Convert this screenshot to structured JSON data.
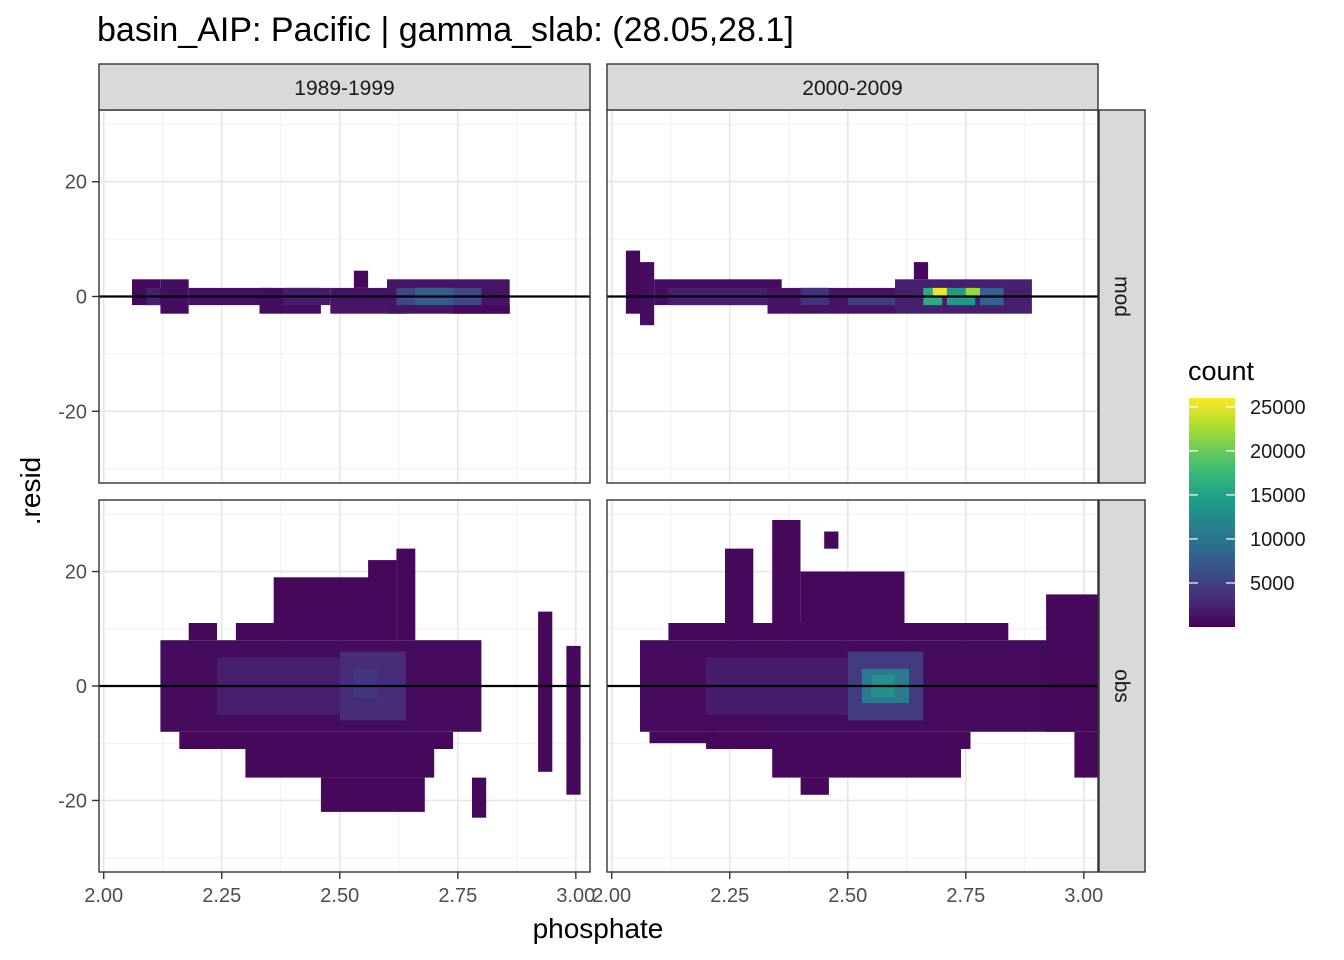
{
  "chart_data": {
    "type": "heatmap",
    "title": "basin_AIP: Pacific | gamma_slab: (28.05,28.1]",
    "xlabel": "phosphate",
    "ylabel": ".resid",
    "xlim": [
      1.99,
      3.03
    ],
    "ylim": [
      -32.5,
      32.5
    ],
    "x_ticks": [
      2.0,
      2.25,
      2.5,
      2.75,
      3.0
    ],
    "x_tick_labels": [
      "2.00",
      "2.25",
      "2.50",
      "2.75",
      "3.00"
    ],
    "y_ticks": [
      -20,
      0,
      20
    ],
    "y_tick_labels": [
      "-20",
      "0",
      "20"
    ],
    "col_facets": [
      "1989-1999",
      "2000-2009"
    ],
    "row_facets": [
      "mod",
      "obs"
    ],
    "bin_width_x": 0.03,
    "bin_height_y": 1.5,
    "reference_line_y": 0,
    "grid": true,
    "legend": {
      "title": "count",
      "position": "right",
      "min": 0,
      "max": 26000,
      "ticks": [
        5000,
        10000,
        15000,
        20000,
        25000
      ],
      "tick_labels": [
        "5000",
        "10000",
        "15000",
        "20000",
        "25000"
      ],
      "colors": [
        "#440154",
        "#482878",
        "#3E4A89",
        "#31688E",
        "#26828E",
        "#1F9E89",
        "#35B779",
        "#6DCD59",
        "#B4DE2C",
        "#FDE725"
      ]
    },
    "panels": [
      {
        "col": "1989-1999",
        "row": "mod",
        "cells": [
          {
            "x0": 2.06,
            "x1": 2.12,
            "y0": -1.5,
            "y1": 3,
            "count": 600
          },
          {
            "x0": 2.09,
            "x1": 2.15,
            "y0": -1.5,
            "y1": 1.5,
            "count": 2200
          },
          {
            "x0": 2.12,
            "x1": 2.18,
            "y0": -3,
            "y1": 3,
            "count": 900
          },
          {
            "x0": 2.18,
            "x1": 2.36,
            "y0": -1.5,
            "y1": 1.5,
            "count": 1100
          },
          {
            "x0": 2.33,
            "x1": 2.46,
            "y0": -3,
            "y1": 1.5,
            "count": 900
          },
          {
            "x0": 2.38,
            "x1": 2.48,
            "y0": -1.5,
            "y1": 1.5,
            "count": 2000
          },
          {
            "x0": 2.48,
            "x1": 2.64,
            "y0": -3,
            "y1": 1.5,
            "count": 1500
          },
          {
            "x0": 2.53,
            "x1": 2.56,
            "y0": 1.5,
            "y1": 4.5,
            "count": 500
          },
          {
            "x0": 2.6,
            "x1": 2.86,
            "y0": -3,
            "y1": 3,
            "count": 1400
          },
          {
            "x0": 2.62,
            "x1": 2.8,
            "y0": -1.5,
            "y1": 1.5,
            "count": 5500
          },
          {
            "x0": 2.66,
            "x1": 2.74,
            "y0": -1.5,
            "y1": 1.5,
            "count": 7500
          },
          {
            "x0": 2.74,
            "x1": 2.86,
            "y0": -3,
            "y1": -1.5,
            "count": 700
          }
        ]
      },
      {
        "col": "2000-2009",
        "row": "mod",
        "cells": [
          {
            "x0": 2.03,
            "x1": 2.06,
            "y0": -3,
            "y1": 8,
            "count": 600
          },
          {
            "x0": 2.06,
            "x1": 2.09,
            "y0": -5,
            "y1": 6,
            "count": 900
          },
          {
            "x0": 2.09,
            "x1": 2.36,
            "y0": -1.5,
            "y1": 3,
            "count": 900
          },
          {
            "x0": 2.12,
            "x1": 2.36,
            "y0": -1.5,
            "y1": 1.5,
            "count": 2200
          },
          {
            "x0": 2.33,
            "x1": 2.6,
            "y0": -3,
            "y1": 1.5,
            "count": 1300
          },
          {
            "x0": 2.4,
            "x1": 2.46,
            "y0": -1.5,
            "y1": 1.5,
            "count": 3500
          },
          {
            "x0": 2.5,
            "x1": 2.6,
            "y0": -1.5,
            "y1": 0,
            "count": 4500
          },
          {
            "x0": 2.6,
            "x1": 2.89,
            "y0": -3,
            "y1": 3,
            "count": 2200
          },
          {
            "x0": 2.64,
            "x1": 2.67,
            "y0": 3,
            "y1": 6,
            "count": 500
          },
          {
            "x0": 2.66,
            "x1": 2.7,
            "y0": -1.5,
            "y1": 1.5,
            "count": 16000
          },
          {
            "x0": 2.68,
            "x1": 2.71,
            "y0": 0,
            "y1": 1.5,
            "count": 25500
          },
          {
            "x0": 2.71,
            "x1": 2.77,
            "y0": -1.5,
            "y1": 1.5,
            "count": 14000
          },
          {
            "x0": 2.75,
            "x1": 2.78,
            "y0": 0,
            "y1": 1.5,
            "count": 22000
          },
          {
            "x0": 2.78,
            "x1": 2.83,
            "y0": -1.5,
            "y1": 1.5,
            "count": 8000
          }
        ]
      },
      {
        "col": "1989-1999",
        "row": "obs",
        "cells": [
          {
            "x0": 2.12,
            "x1": 2.8,
            "y0": -8,
            "y1": 8,
            "count": 800
          },
          {
            "x0": 2.18,
            "x1": 2.24,
            "y0": 8,
            "y1": 11,
            "count": 500
          },
          {
            "x0": 2.28,
            "x1": 2.62,
            "y0": 8,
            "y1": 11,
            "count": 500
          },
          {
            "x0": 2.36,
            "x1": 2.58,
            "y0": 11,
            "y1": 19,
            "count": 500
          },
          {
            "x0": 2.56,
            "x1": 2.62,
            "y0": 11,
            "y1": 22,
            "count": 500
          },
          {
            "x0": 2.62,
            "x1": 2.66,
            "y0": 8,
            "y1": 24,
            "count": 500
          },
          {
            "x0": 2.16,
            "x1": 2.74,
            "y0": -11,
            "y1": -8,
            "count": 500
          },
          {
            "x0": 2.3,
            "x1": 2.7,
            "y0": -16,
            "y1": -11,
            "count": 500
          },
          {
            "x0": 2.46,
            "x1": 2.68,
            "y0": -22,
            "y1": -16,
            "count": 500
          },
          {
            "x0": 2.78,
            "x1": 2.81,
            "y0": -23,
            "y1": -16,
            "count": 500
          },
          {
            "x0": 2.24,
            "x1": 2.5,
            "y0": -5,
            "y1": 5,
            "count": 2200
          },
          {
            "x0": 2.5,
            "x1": 2.64,
            "y0": -6,
            "y1": 6,
            "count": 3200
          },
          {
            "x0": 2.53,
            "x1": 2.58,
            "y0": -2,
            "y1": 3,
            "count": 4000
          },
          {
            "x0": 2.92,
            "x1": 2.95,
            "y0": -15,
            "y1": 13,
            "count": 500
          },
          {
            "x0": 2.98,
            "x1": 3.01,
            "y0": -19,
            "y1": 7,
            "count": 500
          }
        ]
      },
      {
        "col": "2000-2009",
        "row": "obs",
        "cells": [
          {
            "x0": 2.06,
            "x1": 2.98,
            "y0": -8,
            "y1": 8,
            "count": 800
          },
          {
            "x0": 2.12,
            "x1": 2.84,
            "y0": 8,
            "y1": 11,
            "count": 500
          },
          {
            "x0": 2.08,
            "x1": 2.22,
            "y0": -10,
            "y1": -8,
            "count": 500
          },
          {
            "x0": 2.2,
            "x1": 2.76,
            "y0": -11,
            "y1": -8,
            "count": 500
          },
          {
            "x0": 2.34,
            "x1": 2.74,
            "y0": -16,
            "y1": -11,
            "count": 500
          },
          {
            "x0": 2.4,
            "x1": 2.46,
            "y0": -19,
            "y1": -16,
            "count": 500
          },
          {
            "x0": 2.24,
            "x1": 2.3,
            "y0": 11,
            "y1": 24,
            "count": 500
          },
          {
            "x0": 2.34,
            "x1": 2.4,
            "y0": 11,
            "y1": 29,
            "count": 500
          },
          {
            "x0": 2.4,
            "x1": 2.62,
            "y0": 11,
            "y1": 20,
            "count": 500
          },
          {
            "x0": 2.45,
            "x1": 2.48,
            "y0": 24,
            "y1": 27,
            "count": 500
          },
          {
            "x0": 2.2,
            "x1": 2.5,
            "y0": -5,
            "y1": 5,
            "count": 2000
          },
          {
            "x0": 2.5,
            "x1": 2.66,
            "y0": -6,
            "y1": 6,
            "count": 4500
          },
          {
            "x0": 2.53,
            "x1": 2.63,
            "y0": -3,
            "y1": 3,
            "count": 10500
          },
          {
            "x0": 2.55,
            "x1": 2.6,
            "y0": -2,
            "y1": 2,
            "count": 13000
          },
          {
            "x0": 2.92,
            "x1": 3.08,
            "y0": -8,
            "y1": 16,
            "count": 500
          },
          {
            "x0": 2.98,
            "x1": 3.04,
            "y0": -16,
            "y1": -8,
            "count": 500
          }
        ]
      }
    ]
  }
}
